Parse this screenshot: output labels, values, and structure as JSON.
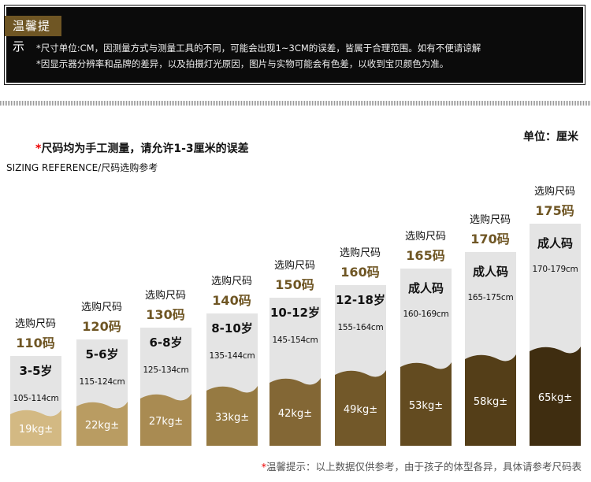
{
  "notice": {
    "title": "温馨提示",
    "lines": [
      "*尺寸单位:CM，因测量方式与测量工具的不同，可能会出现1~3CM的误差，皆属于合理范围。如有不便请谅解",
      "*因显示器分辨率和品牌的差异，以及拍摄灯光原因，图片与实物可能会有色差，以收到宝贝颜色为准。"
    ]
  },
  "unit": "单位：厘米",
  "hand_note": {
    "star": "*",
    "text": "尺码均为手工测量，请允许1-3厘米的误差"
  },
  "reference": "SIZING REFERENCE/尺码选购参考",
  "choose_label": "选购尺码",
  "sizes": [
    {
      "code": "110码",
      "age": "3-5岁",
      "height": "105-114cm",
      "weight": "19kg±",
      "color": "#d3b983"
    },
    {
      "code": "120码",
      "age": "5-6岁",
      "height": "115-124cm",
      "weight": "22kg±",
      "color": "#b99c62"
    },
    {
      "code": "130码",
      "age": "6-8岁",
      "height": "125-134cm",
      "weight": "27kg±",
      "color": "#a98b52"
    },
    {
      "code": "140码",
      "age": "8-10岁",
      "height": "135-144cm",
      "weight": "33kg±",
      "color": "#967a42"
    },
    {
      "code": "150码",
      "age": "10-12岁",
      "height": "145-154cm",
      "weight": "42kg±",
      "color": "#836735"
    },
    {
      "code": "160码",
      "age": "12-18岁",
      "height": "155-164cm",
      "weight": "49kg±",
      "color": "#725829"
    },
    {
      "code": "165码",
      "age": "成人码",
      "height": "160-169cm",
      "weight": "53kg±",
      "color": "#634b20"
    },
    {
      "code": "170码",
      "age": "成人码",
      "height": "165-175cm",
      "weight": "58kg±",
      "color": "#543e18"
    },
    {
      "code": "175码",
      "age": "成人码",
      "height": "170-179cm",
      "weight": "65kg±",
      "color": "#3f2d10"
    }
  ],
  "footer": {
    "star": "*",
    "text": "温馨提示：以上数据仅供参考，由于孩子的体型各异，具体请参考尺码表"
  }
}
